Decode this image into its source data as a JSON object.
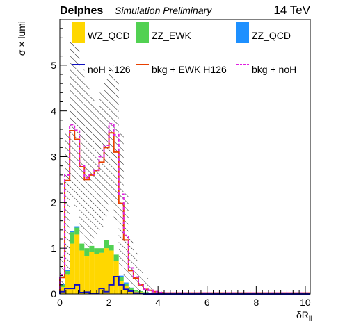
{
  "header": {
    "brand": "Delphes",
    "subtitle": "Simulation Preliminary",
    "energy": "14 TeV"
  },
  "chart_data": {
    "type": "histogram",
    "xlabel": "δR",
    "xlabel_sub": "ll",
    "ylabel": "σ × lumi",
    "xlim": [
      0,
      10.2
    ],
    "ylim": [
      0,
      6.0
    ],
    "x_ticks": [
      "0",
      "2",
      "4",
      "6",
      "8",
      "10"
    ],
    "y_ticks": [
      "0",
      "1",
      "2",
      "3",
      "4",
      "5"
    ],
    "bin_width": 0.2,
    "bins_start": 0,
    "legend": [
      {
        "key": "wz_qcd",
        "label": "WZ_QCD",
        "style": "fill"
      },
      {
        "key": "zz_ewk",
        "label": "ZZ_EWK",
        "style": "fill"
      },
      {
        "key": "zz_qcd",
        "label": "ZZ_QCD",
        "style": "fill"
      },
      {
        "key": "noh",
        "label": "noH - 126",
        "style": "line"
      },
      {
        "key": "bkg_ewk",
        "label": "bkg + EWK H126",
        "style": "line"
      },
      {
        "key": "bkg_noh",
        "label": "bkg + noH",
        "style": "dashed"
      }
    ],
    "colors": {
      "wz_qcd": "#ffd700",
      "zz_ewk": "#52d152",
      "zz_qcd": "#1e90ff",
      "noh": "#1010c0",
      "bkg_ewk": "#e84000",
      "bkg_noh": "#e020e0",
      "hatch": "#000000"
    },
    "series": {
      "wz_qcd": [
        0.15,
        0.42,
        1.1,
        1.3,
        0.95,
        0.82,
        0.92,
        0.88,
        0.9,
        1.0,
        0.95,
        0.72,
        0.28,
        0.17,
        0.08,
        0.05,
        0.04,
        0.03,
        0.02,
        0.01,
        0.01,
        0.01,
        0.01,
        0.01,
        0.01,
        0.01,
        0.01,
        0.01,
        0.01,
        0.01,
        0.01,
        0.01,
        0.01,
        0.01,
        0.01,
        0.01,
        0.01,
        0.01,
        0.01,
        0.01,
        0.01,
        0.01,
        0.01,
        0.01,
        0.01,
        0.01,
        0.01,
        0.01,
        0.01,
        0.01,
        0.01
      ],
      "zz_ewk": [
        0.05,
        0.08,
        0.25,
        0.15,
        0.15,
        0.18,
        0.13,
        0.12,
        0.1,
        0.18,
        0.12,
        0.14,
        0.1,
        0.06,
        0.05,
        0.03,
        0.02,
        0.01,
        0.01,
        0.0,
        0.0,
        0.0,
        0.0,
        0.0,
        0.0,
        0.0,
        0.0,
        0.0,
        0.0,
        0.0,
        0.0,
        0.0,
        0.0,
        0.0,
        0.0,
        0.0,
        0.0,
        0.0,
        0.0,
        0.0,
        0.0,
        0.0,
        0.0,
        0.0,
        0.0,
        0.0,
        0.0,
        0.0,
        0.0,
        0.0,
        0.0
      ],
      "zz_qcd": [
        0.02,
        0.03,
        0.03,
        0.03,
        0.0,
        0.0,
        0.0,
        0.0,
        0.0,
        0.0,
        0.0,
        0.0,
        0.02,
        0.02,
        0.01,
        0.01,
        0.0,
        0.0,
        0.0,
        0.0,
        0.0,
        0.0,
        0.0,
        0.0,
        0.0,
        0.0,
        0.0,
        0.0,
        0.0,
        0.0,
        0.0,
        0.0,
        0.0,
        0.0,
        0.0,
        0.0,
        0.0,
        0.0,
        0.0,
        0.0,
        0.0,
        0.0,
        0.0,
        0.0,
        0.0,
        0.0,
        0.0,
        0.0,
        0.0,
        0.0,
        0.0
      ],
      "noh": [
        0.05,
        0.12,
        0.12,
        0.2,
        0.03,
        0.04,
        0.01,
        0.01,
        0.12,
        0.05,
        0.2,
        0.38,
        0.2,
        0.1,
        0.06,
        0.02,
        0.01,
        0.0,
        0.0,
        0.0,
        0.0,
        0.0,
        0.0,
        0.0,
        0.0,
        0.0,
        0.0,
        0.0,
        0.0,
        0.0,
        0.0,
        0.0,
        0.0,
        0.0,
        0.0,
        0.0,
        0.0,
        0.0,
        0.0,
        0.0,
        0.0,
        0.0,
        0.0,
        0.0,
        0.0,
        0.0,
        0.0,
        0.0,
        0.0,
        0.0,
        0.0
      ],
      "bkg_ewk": [
        0.36,
        2.48,
        3.57,
        3.38,
        2.78,
        2.5,
        2.6,
        2.7,
        2.88,
        3.2,
        3.52,
        3.1,
        1.98,
        1.18,
        0.51,
        0.35,
        0.2,
        0.1,
        0.08,
        0.05,
        0.03,
        0.02,
        0.02,
        0.02,
        0.02,
        0.02,
        0.02,
        0.02,
        0.02,
        0.02,
        0.02,
        0.02,
        0.02,
        0.02,
        0.02,
        0.02,
        0.02,
        0.02,
        0.02,
        0.02,
        0.02,
        0.02,
        0.02,
        0.02,
        0.02,
        0.02,
        0.02,
        0.02,
        0.02,
        0.02,
        0.02
      ],
      "bkg_noh": [
        0.41,
        2.6,
        3.7,
        3.58,
        2.81,
        2.54,
        2.61,
        2.71,
        3.0,
        3.25,
        3.72,
        3.48,
        2.18,
        1.28,
        0.57,
        0.37,
        0.21,
        0.1,
        0.08,
        0.05,
        0.03,
        0.02,
        0.02,
        0.02,
        0.02,
        0.02,
        0.02,
        0.02,
        0.02,
        0.02,
        0.02,
        0.02,
        0.02,
        0.02,
        0.02,
        0.02,
        0.02,
        0.02,
        0.02,
        0.02,
        0.02,
        0.02,
        0.02,
        0.02,
        0.02,
        0.02,
        0.02,
        0.02,
        0.02,
        0.02,
        0.02
      ],
      "uncertainty": [
        {
          "low": 0.0,
          "high": 0.85
        },
        {
          "low": 0.0,
          "high": 3.55
        },
        {
          "low": 2.1,
          "high": 5.6
        },
        {
          "low": 1.9,
          "high": 5.4
        },
        {
          "low": 1.3,
          "high": 4.9
        },
        {
          "low": 1.0,
          "high": 4.6
        },
        {
          "low": 1.1,
          "high": 4.3
        },
        {
          "low": 1.3,
          "high": 4.1
        },
        {
          "low": 1.4,
          "high": 4.4
        },
        {
          "low": 1.7,
          "high": 4.7
        },
        {
          "low": 2.0,
          "high": 5.0
        },
        {
          "low": 1.6,
          "high": 4.7
        },
        {
          "low": 0.6,
          "high": 3.5
        },
        {
          "low": 0.3,
          "high": 2.2
        },
        {
          "low": 0.1,
          "high": 1.2
        },
        {
          "low": 0.0,
          "high": 0.9
        },
        {
          "low": 0.0,
          "high": 0.55
        },
        {
          "low": 0.0,
          "high": 0.35
        },
        {
          "low": 0.0,
          "high": 0.22
        },
        {
          "low": 0.0,
          "high": 0.12
        },
        {
          "low": 0.0,
          "high": 0.06
        }
      ]
    }
  }
}
